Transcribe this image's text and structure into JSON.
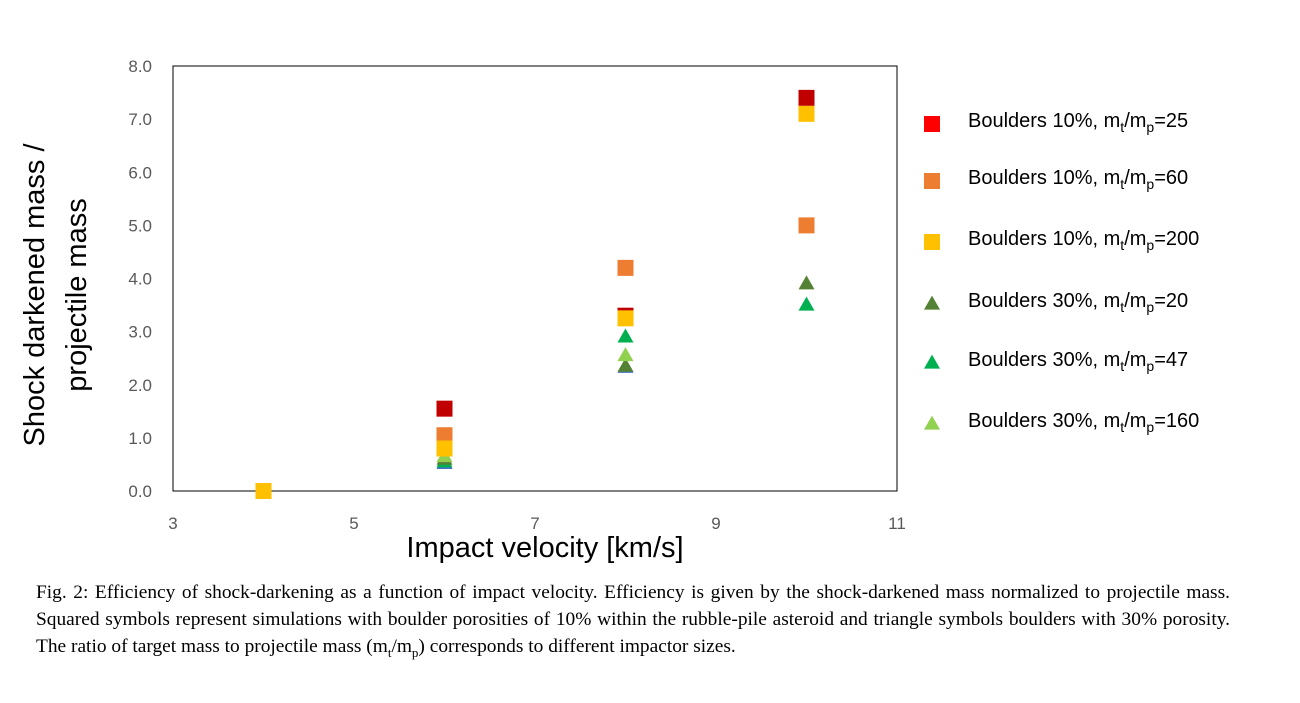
{
  "chart_data": {
    "type": "scatter",
    "xlabel": "Impact velocity [km/s]",
    "ylabel_lines": [
      "Shock darkened mass /",
      "projectile mass"
    ],
    "xlim": [
      3,
      11
    ],
    "ylim": [
      0,
      8
    ],
    "x_ticks": [
      3,
      5,
      7,
      9,
      11
    ],
    "x_tick_labels": [
      "3",
      "5",
      "7",
      "9",
      "11"
    ],
    "y_ticks": [
      0,
      1,
      2,
      3,
      4,
      5,
      6,
      7,
      8
    ],
    "y_tick_labels": [
      "0.0",
      "1.0",
      "2.0",
      "3.0",
      "4.0",
      "5.0",
      "6.0",
      "7.0",
      "8.0"
    ],
    "grid": false,
    "legend_position": "right",
    "series": [
      {
        "name_prefix": "Boulders 10%, m",
        "sub1": "t",
        "slash": "/m",
        "sub2": "p",
        "name_suffix": "=25",
        "marker": "square",
        "color": "#C00000",
        "legend_color": "#FF0000",
        "points": [
          {
            "x": 6,
            "y": 1.55
          },
          {
            "x": 8,
            "y": 3.3
          },
          {
            "x": 10,
            "y": 7.4
          }
        ]
      },
      {
        "name_prefix": "Boulders 10%, m",
        "sub1": "t",
        "slash": "/m",
        "sub2": "p",
        "name_suffix": "=60",
        "marker": "square",
        "color": "#ED7D31",
        "legend_color": "#ED7D31",
        "points": [
          {
            "x": 6,
            "y": 1.05
          },
          {
            "x": 8,
            "y": 4.2
          },
          {
            "x": 10,
            "y": 5.0
          }
        ]
      },
      {
        "name_prefix": "Boulders 10%, m",
        "sub1": "t",
        "slash": "/m",
        "sub2": "p",
        "name_suffix": "=200",
        "marker": "square",
        "color": "#FFC000",
        "legend_color": "#FFC000",
        "points": [
          {
            "x": 4,
            "y": 0.0
          },
          {
            "x": 6,
            "y": 0.8
          },
          {
            "x": 8,
            "y": 3.25
          },
          {
            "x": 10,
            "y": 7.1
          }
        ]
      },
      {
        "name_prefix": "Boulders 30%, m",
        "sub1": "t",
        "slash": "/m",
        "sub2": "p",
        "name_suffix": "=20",
        "marker": "triangle",
        "color": "#548235",
        "legend_color": "#548235",
        "points": [
          {
            "x": 6,
            "y": 0.6
          },
          {
            "x": 8,
            "y": 2.35
          },
          {
            "x": 10,
            "y": 3.9
          }
        ]
      },
      {
        "name_prefix": "Boulders 30%, m",
        "sub1": "t",
        "slash": "/m",
        "sub2": "p",
        "name_suffix": "=47",
        "marker": "triangle",
        "color": "#00B050",
        "legend_color": "#00B050",
        "points": [
          {
            "x": 6,
            "y": 0.55
          },
          {
            "x": 8,
            "y": 2.9
          },
          {
            "x": 10,
            "y": 3.5
          }
        ]
      },
      {
        "name_prefix": "Boulders 30%, m",
        "sub1": "t",
        "slash": "/m",
        "sub2": "p",
        "name_suffix": "=160",
        "marker": "triangle",
        "color": "#92D050",
        "legend_color": "#92D050",
        "points": [
          {
            "x": 6,
            "y": 0.65
          },
          {
            "x": 8,
            "y": 2.55
          }
        ]
      },
      {
        "name_prefix": "",
        "sub1": "",
        "slash": "",
        "sub2": "",
        "name_suffix": "",
        "marker": "triangle",
        "color": "#4472C4",
        "legend_color": "#4472C4",
        "in_legend": false,
        "points": [
          {
            "x": 6,
            "y": 0.52
          },
          {
            "x": 8,
            "y": 2.33
          }
        ]
      }
    ]
  },
  "caption": {
    "part1": "Fig. 2: Efficiency of shock-darkening as a function of impact velocity. Efficiency is given by the shock-darkened mass normalized to projectile mass. Squared symbols represent simulations with boulder porosities of 10% within the rubble-pile asteroid and triangle symbols boulders with 30% porosity. The ratio of target mass to projectile mass (m",
    "sub1": "t",
    "slash": "/m",
    "sub2": "p",
    "part2": ") corresponds to different impactor sizes."
  }
}
